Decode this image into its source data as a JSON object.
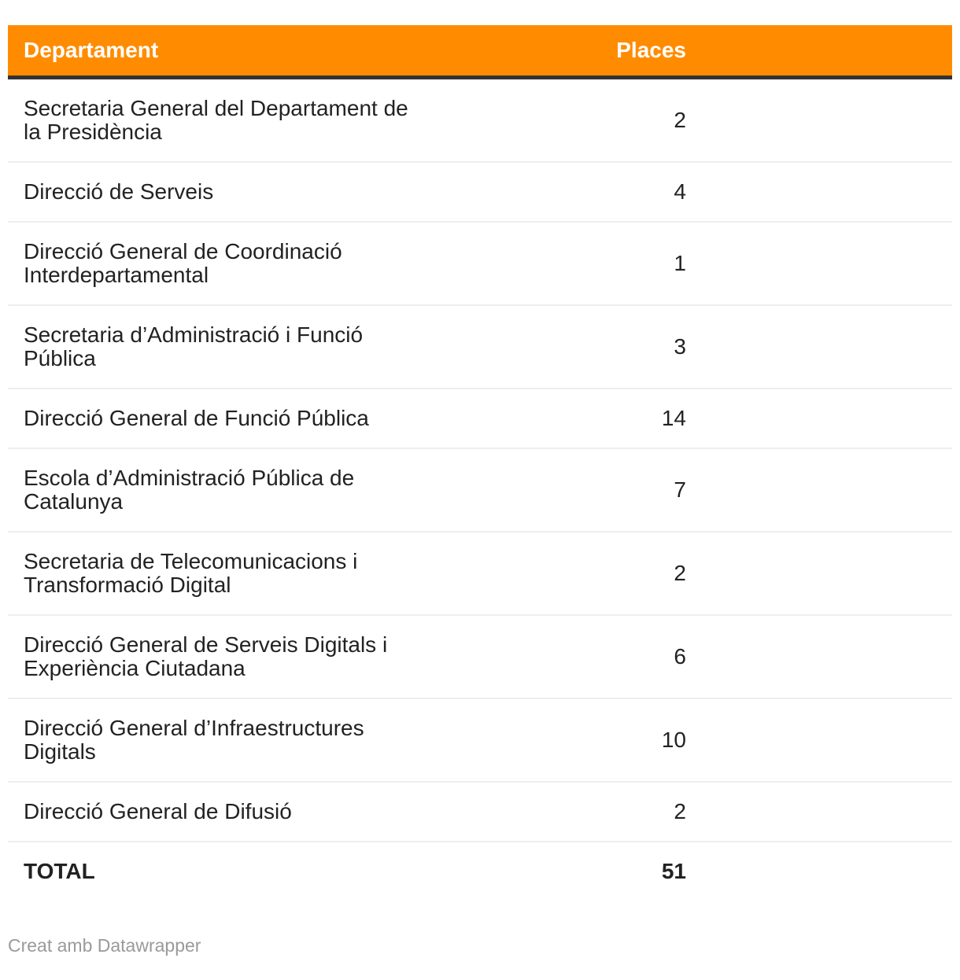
{
  "header": {
    "columns": [
      {
        "label": "Departament"
      },
      {
        "label": "Places"
      }
    ]
  },
  "table": {
    "rows": [
      {
        "departament": "Secretaria General del Departament de\nla Presidència",
        "places": "2"
      },
      {
        "departament": "Direcció de Serveis",
        "places": "4"
      },
      {
        "departament": "Direcció General de Coordinació\nInterdepartamental",
        "places": "1"
      },
      {
        "departament": "Secretaria d’Administració i Funció\nPública",
        "places": "3"
      },
      {
        "departament": "Direcció General de Funció Pública",
        "places": "14"
      },
      {
        "departament": "Escola d’Administració Pública de\nCatalunya",
        "places": "7"
      },
      {
        "departament": "Secretaria de Telecomunicacions i\nTransformació Digital",
        "places": "2"
      },
      {
        "departament": "Direcció General de Serveis Digitals i\nExperiència Ciutadana",
        "places": "6"
      },
      {
        "departament": "Direcció General d’Infraestructures\nDigitals",
        "places": "10"
      },
      {
        "departament": "Direcció General de Difusió",
        "places": "2"
      }
    ],
    "total": {
      "label": "TOTAL",
      "places": "51"
    }
  },
  "footer": {
    "credit": "Creat amb Datawrapper"
  },
  "colors": {
    "header_bg": "#ff8c00",
    "header_text": "#ffffff",
    "header_rule": "#333333",
    "row_divider": "#eeeeee",
    "body_text": "#222222",
    "credit_text": "#9a9a9a"
  },
  "chart_data": {
    "type": "table",
    "columns": [
      "Departament",
      "Places"
    ],
    "rows": [
      [
        "Secretaria General del Departament de la Presidència",
        2
      ],
      [
        "Direcció de Serveis",
        4
      ],
      [
        "Direcció General de Coordinació Interdepartamental",
        1
      ],
      [
        "Secretaria d’Administració i Funció Pública",
        3
      ],
      [
        "Direcció General de Funció Pública",
        14
      ],
      [
        "Escola d’Administració Pública de Catalunya",
        7
      ],
      [
        "Secretaria de Telecomunicacions i Transformació Digital",
        2
      ],
      [
        "Direcció General de Serveis Digitals i Experiència Ciutadana",
        6
      ],
      [
        "Direcció General d’Infraestructures Digitals",
        10
      ],
      [
        "Direcció General de Difusió",
        2
      ]
    ],
    "total": [
      "TOTAL",
      51
    ],
    "layout_hints": {
      "header_background": "#ff8c00",
      "value_column_alignment": "right",
      "grid": "horizontal-dividers-only"
    }
  }
}
